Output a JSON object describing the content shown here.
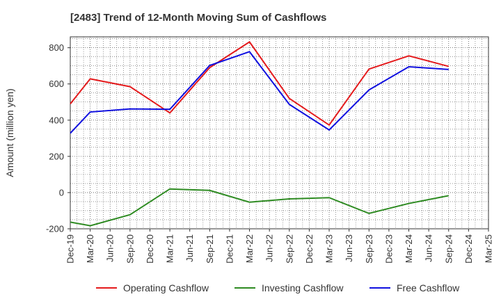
{
  "chart_data": {
    "type": "line",
    "title": "[2483]  Trend of 12-Month Moving Sum of Cashflows",
    "xlabel": "",
    "ylabel": "Amount (million yen)",
    "ylim": [
      -200,
      860
    ],
    "yticks": [
      -200,
      0,
      200,
      400,
      600,
      800
    ],
    "categories": [
      "Dec-19",
      "Mar-20",
      "Jun-20",
      "Sep-20",
      "Dec-20",
      "Mar-21",
      "Jun-21",
      "Sep-21",
      "Dec-21",
      "Mar-22",
      "Jun-22",
      "Sep-22",
      "Dec-22",
      "Mar-23",
      "Jun-23",
      "Sep-23",
      "Dec-23",
      "Mar-24",
      "Jun-24",
      "Sep-24",
      "Dec-24",
      "Mar-25"
    ],
    "grid": true,
    "legend_position": "bottom",
    "series": [
      {
        "name": "Operating Cashflow",
        "color": "#e41a1c",
        "x": [
          "Dec-19",
          "Mar-20",
          "Sep-20",
          "Mar-21",
          "Sep-21",
          "Mar-22",
          "Sep-22",
          "Mar-23",
          "Sep-23",
          "Mar-24",
          "Sep-24"
        ],
        "values": [
          490,
          628,
          585,
          440,
          690,
          832,
          520,
          373,
          682,
          755,
          697
        ]
      },
      {
        "name": "Investing Cashflow",
        "color": "#2e8b22",
        "x": [
          "Dec-19",
          "Mar-20",
          "Sep-20",
          "Mar-21",
          "Sep-21",
          "Mar-22",
          "Sep-22",
          "Mar-23",
          "Sep-23",
          "Mar-24",
          "Sep-24"
        ],
        "values": [
          -163,
          -183,
          -122,
          20,
          12,
          -53,
          -35,
          -28,
          -115,
          -60,
          -17
        ]
      },
      {
        "name": "Free Cashflow",
        "color": "#1010e0",
        "x": [
          "Dec-19",
          "Mar-20",
          "Sep-20",
          "Mar-21",
          "Sep-21",
          "Mar-22",
          "Sep-22",
          "Mar-23",
          "Sep-23",
          "Mar-24",
          "Sep-24"
        ],
        "values": [
          328,
          445,
          462,
          460,
          702,
          778,
          487,
          346,
          567,
          695,
          680
        ]
      }
    ]
  }
}
